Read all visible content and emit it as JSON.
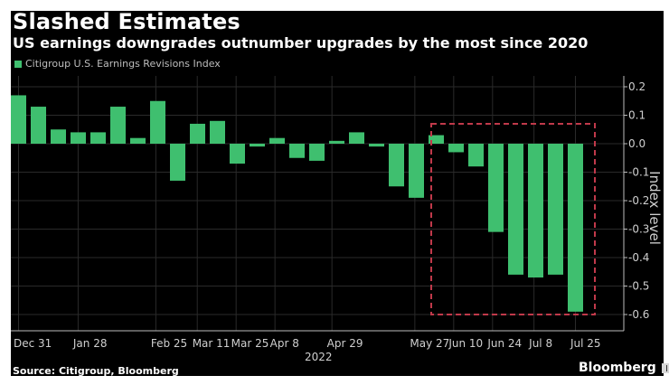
{
  "header": {
    "title": "Slashed Estimates",
    "subtitle": "US earnings downgrades outnumber upgrades by the most since 2020"
  },
  "footer": {
    "source": "Source: Citigroup, Bloomberg",
    "brand": "Bloomberg"
  },
  "colors": {
    "background": "#000000",
    "bar": "#3fbf6f",
    "highlight_box": "#c0394a",
    "grid": "#2a2a2a",
    "text": "#cfcfcf"
  },
  "chart_data": {
    "type": "bar",
    "title": "Slashed Estimates",
    "subtitle": "US earnings downgrades outnumber upgrades by the most since 2020",
    "legend": [
      "Citigroup U.S. Earnings Revisions Index"
    ],
    "legend_position": "top-left",
    "xlabel": "2022",
    "ylabel": "Index level",
    "ylim": [
      -0.65,
      0.22
    ],
    "yticks": [
      "0.2",
      "0.1",
      "0.0",
      "-0.1",
      "-0.2",
      "-0.3",
      "-0.4",
      "-0.5",
      "-0.6"
    ],
    "ytick_values": [
      0.2,
      0.1,
      0.0,
      -0.1,
      -0.2,
      -0.3,
      -0.4,
      -0.5,
      -0.6
    ],
    "grid": true,
    "series": [
      {
        "name": "Citigroup U.S. Earnings Revisions Index",
        "values": [
          0.17,
          0.13,
          0.05,
          0.04,
          0.04,
          0.13,
          0.02,
          0.15,
          -0.13,
          0.07,
          0.08,
          -0.07,
          -0.01,
          0.02,
          -0.05,
          -0.06,
          0.01,
          0.04,
          -0.01,
          -0.15,
          -0.19,
          0.03,
          -0.03,
          -0.08,
          -0.31,
          -0.46,
          -0.47,
          -0.46,
          -0.59
        ]
      }
    ],
    "xticks": [
      {
        "label": "Dec 31",
        "index": 0
      },
      {
        "label": "Jan 28",
        "index": 2.3
      },
      {
        "label": "Feb 25",
        "index": 5.3
      },
      {
        "label": "Mar 11",
        "index": 6.9
      },
      {
        "label": "Mar 25",
        "index": 8.4
      },
      {
        "label": "Apr 8",
        "index": 9.9
      },
      {
        "label": "Apr 29",
        "index": 12.1
      },
      {
        "label": "May 27",
        "index": 15.3
      },
      {
        "label": "Jun 10",
        "index": 16.8
      },
      {
        "label": "Jun 24",
        "index": 18.3
      },
      {
        "label": "Jul 8",
        "index": 19.9
      },
      {
        "label": "Jul 25",
        "index": 21.5
      }
    ],
    "annotations": [
      {
        "type": "dashed-box",
        "from_index": 21,
        "to_index": 28,
        "y_range": [
          -0.6,
          0.07
        ]
      }
    ]
  }
}
